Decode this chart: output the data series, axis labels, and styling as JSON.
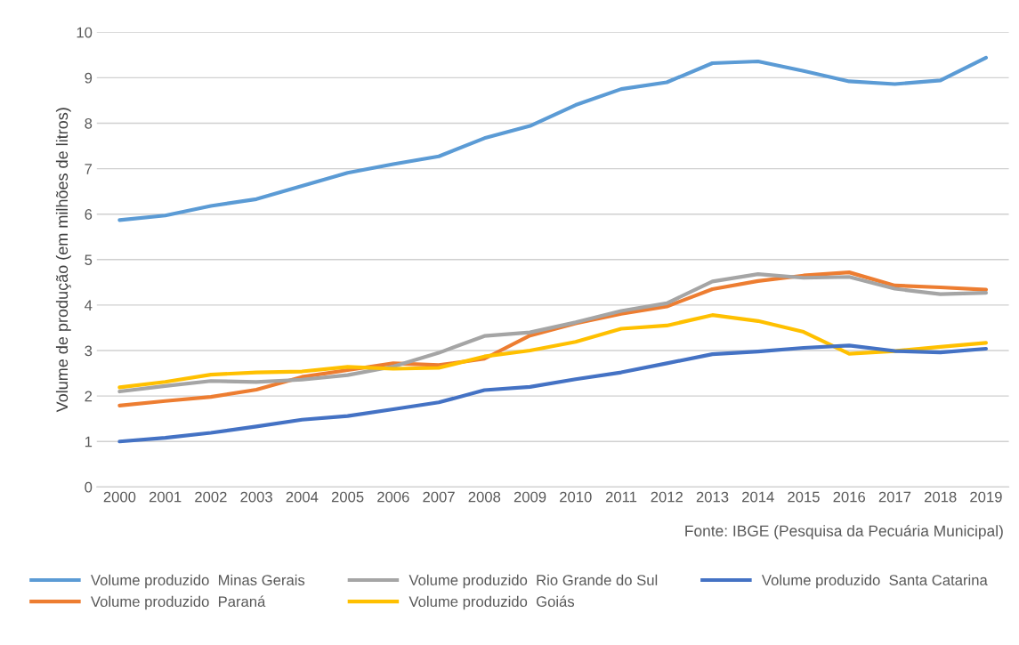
{
  "chart_data": {
    "type": "line",
    "ylabel": "Volume de produção (em milhões de litros)",
    "categories": [
      "2000",
      "2001",
      "2002",
      "2003",
      "2004",
      "2005",
      "2006",
      "2007",
      "2008",
      "2009",
      "2010",
      "2011",
      "2012",
      "2013",
      "2014",
      "2015",
      "2016",
      "2017",
      "2018",
      "2019"
    ],
    "series": [
      {
        "name": "Volume produzido  Minas Gerais",
        "color": "#5b9bd5",
        "values": [
          5.87,
          5.97,
          6.18,
          6.33,
          6.62,
          6.91,
          7.1,
          7.27,
          7.67,
          7.94,
          8.4,
          8.75,
          8.9,
          9.32,
          9.36,
          9.15,
          8.92,
          8.86,
          8.94,
          9.44
        ]
      },
      {
        "name": "Volume produzido  Paraná",
        "color": "#ed7d31",
        "values": [
          1.79,
          1.89,
          1.98,
          2.14,
          2.42,
          2.57,
          2.72,
          2.68,
          2.82,
          3.33,
          3.6,
          3.81,
          3.97,
          4.35,
          4.53,
          4.65,
          4.72,
          4.43,
          4.39,
          4.34
        ]
      },
      {
        "name": "Volume produzido  Rio Grande do Sul",
        "color": "#a5a5a5",
        "values": [
          2.1,
          2.22,
          2.33,
          2.31,
          2.36,
          2.46,
          2.65,
          2.95,
          3.32,
          3.4,
          3.62,
          3.87,
          4.04,
          4.52,
          4.68,
          4.6,
          4.62,
          4.36,
          4.24,
          4.27
        ]
      },
      {
        "name": "Volume produzido  Goiás",
        "color": "#ffc000",
        "values": [
          2.19,
          2.31,
          2.47,
          2.52,
          2.54,
          2.64,
          2.6,
          2.62,
          2.87,
          3.0,
          3.19,
          3.48,
          3.55,
          3.78,
          3.65,
          3.41,
          2.93,
          2.99,
          3.08,
          3.17
        ]
      },
      {
        "name": "Volume produzido  Santa Catarina",
        "color": "#4472c4",
        "values": [
          1.0,
          1.08,
          1.19,
          1.33,
          1.48,
          1.56,
          1.71,
          1.86,
          2.13,
          2.2,
          2.37,
          2.52,
          2.72,
          2.92,
          2.98,
          3.06,
          3.11,
          2.99,
          2.96,
          3.04
        ]
      }
    ],
    "ylim": [
      0,
      10
    ],
    "yticks": [
      0,
      1,
      2,
      3,
      4,
      5,
      6,
      7,
      8,
      9,
      10
    ],
    "grid": "y",
    "legend": "bottom",
    "marker": "none",
    "line_style": "solid",
    "annotations": [
      "Fonte: IBGE (Pesquisa da Pecuária Municipal)"
    ]
  }
}
